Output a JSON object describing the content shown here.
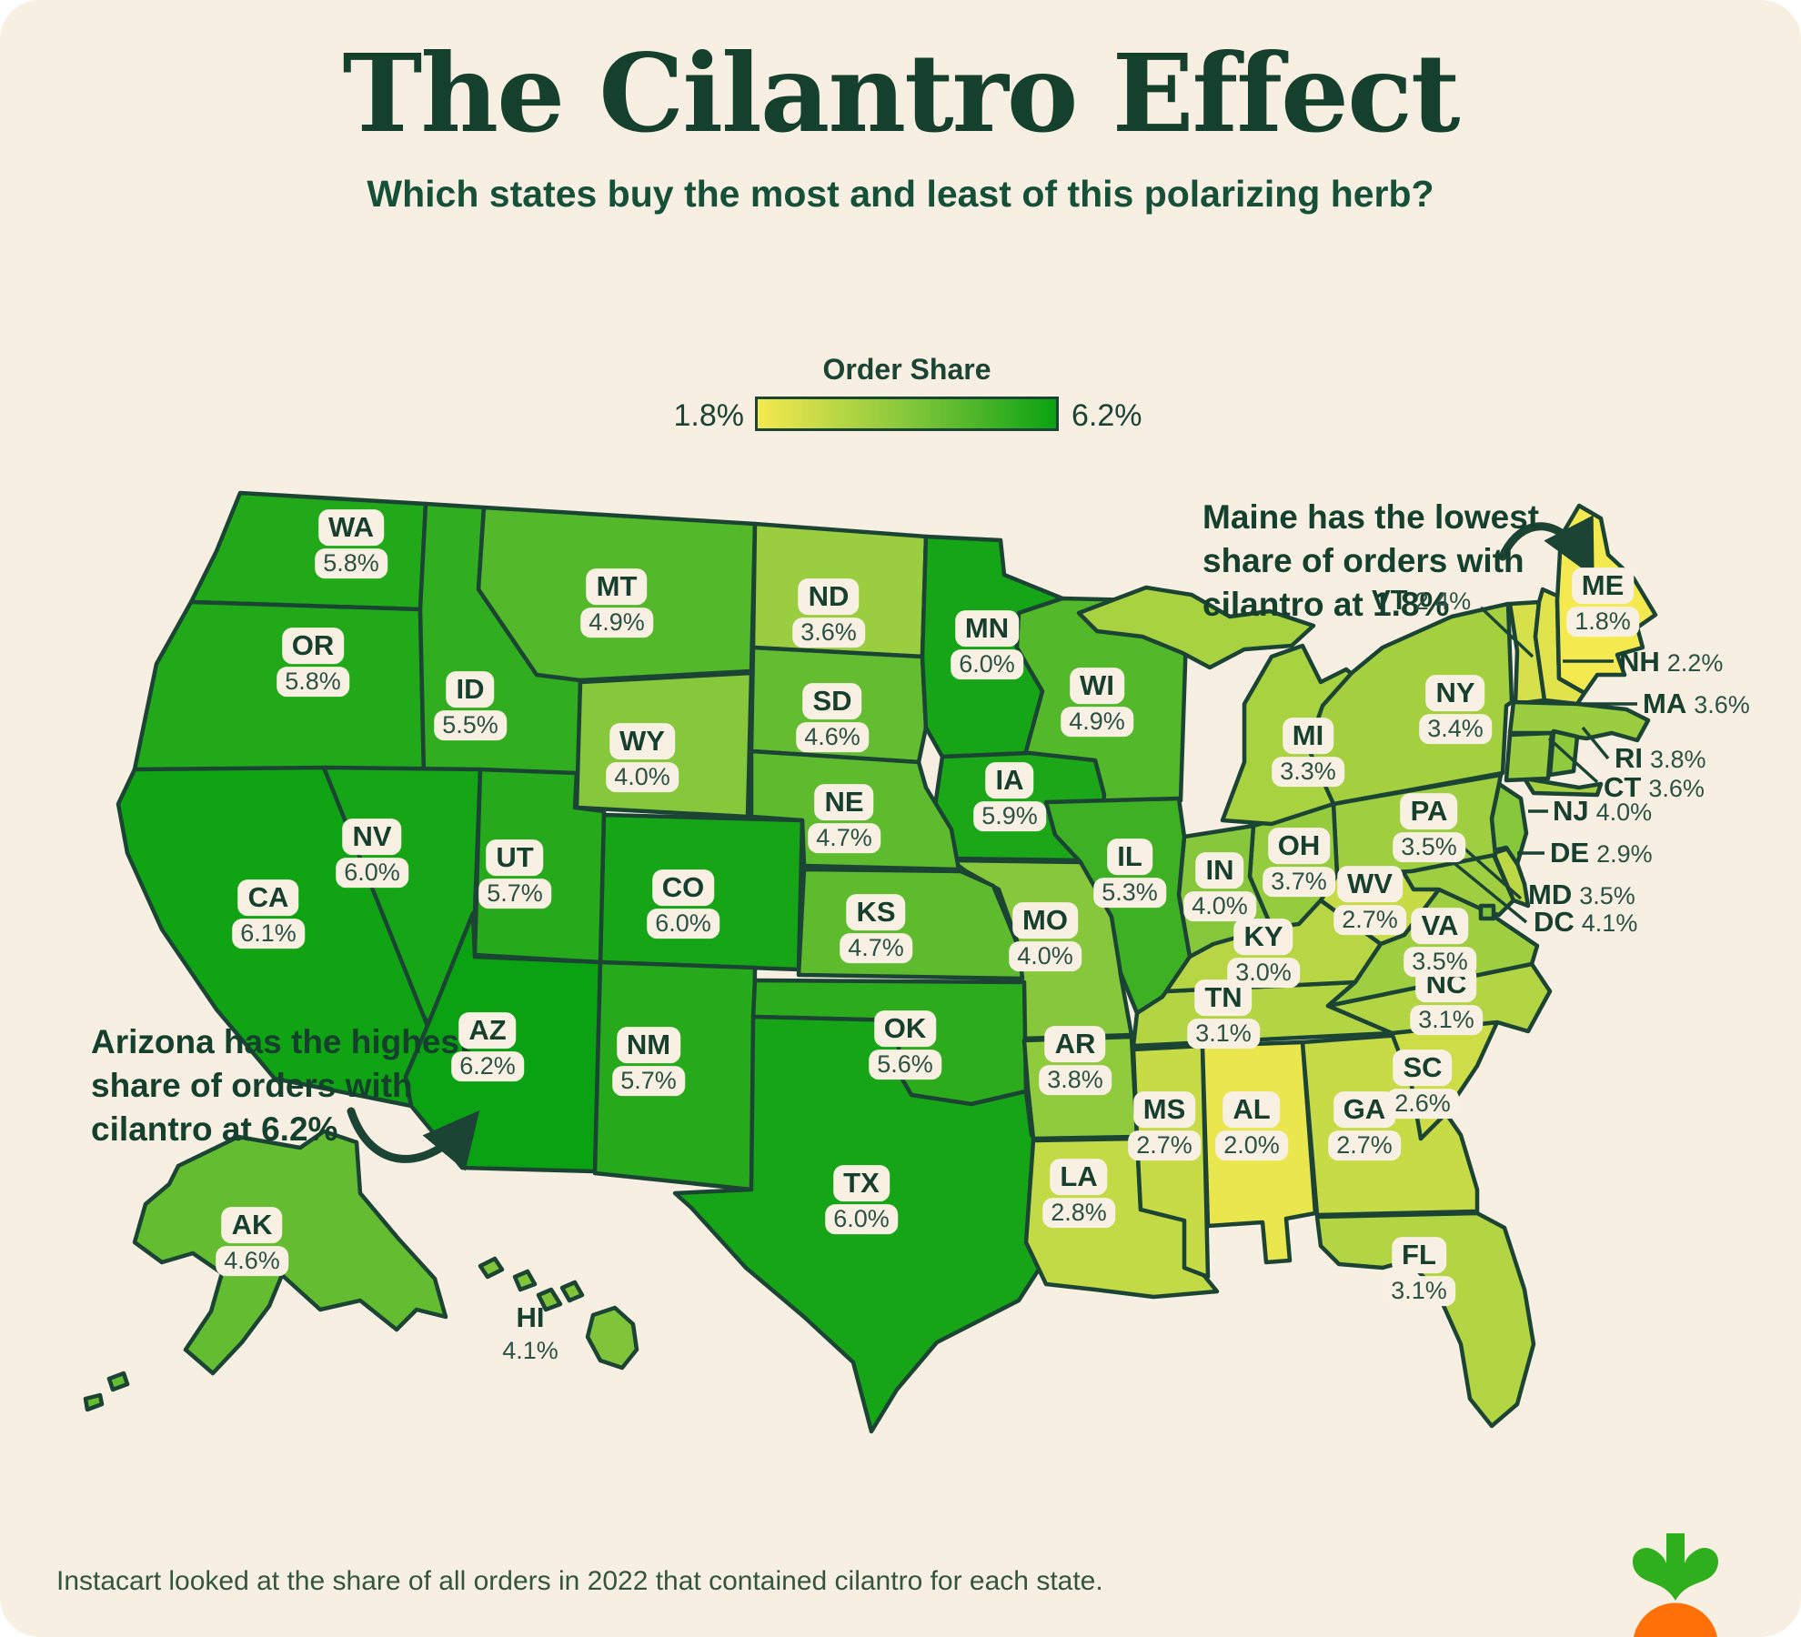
{
  "header": {
    "title": "The Cilantro Effect",
    "subtitle": "Which states buy the most and least of this polarizing herb?"
  },
  "legend": {
    "title": "Order Share",
    "min_label": "1.8%",
    "max_label": "6.2%",
    "min_value": 1.8,
    "max_value": 6.2,
    "min_color": "#f4e94f",
    "mid_color": "#86c73b",
    "max_color": "#0aa212"
  },
  "annotations": {
    "arizona": {
      "text": "Arizona has the highest share of orders with cilantro at 6.2%"
    },
    "maine": {
      "text": "Maine has the lowest share of orders with cilantro at 1.8%"
    }
  },
  "footer": {
    "text": "Instacart looked at the share of all orders in 2022 that contained cilantro for each state."
  },
  "logo": {
    "name": "instacart-carrot",
    "leaf_color": "#2fae1e",
    "carrot_color": "#ff7009"
  },
  "map_style": {
    "stroke_color": "#1c4435",
    "background": "#f7efe1"
  },
  "chart_data": {
    "type": "choropleth-map",
    "region": "united-states",
    "metric": "Order Share",
    "unit": "%",
    "range": [
      1.8,
      6.2
    ],
    "states": [
      {
        "abbr": "WA",
        "value": 5.8
      },
      {
        "abbr": "OR",
        "value": 5.8
      },
      {
        "abbr": "CA",
        "value": 6.1
      },
      {
        "abbr": "NV",
        "value": 6.0
      },
      {
        "abbr": "ID",
        "value": 5.5
      },
      {
        "abbr": "MT",
        "value": 4.9
      },
      {
        "abbr": "WY",
        "value": 4.0
      },
      {
        "abbr": "UT",
        "value": 5.7
      },
      {
        "abbr": "CO",
        "value": 6.0
      },
      {
        "abbr": "AZ",
        "value": 6.2
      },
      {
        "abbr": "NM",
        "value": 5.7
      },
      {
        "abbr": "ND",
        "value": 3.6
      },
      {
        "abbr": "SD",
        "value": 4.6
      },
      {
        "abbr": "NE",
        "value": 4.7
      },
      {
        "abbr": "KS",
        "value": 4.7
      },
      {
        "abbr": "OK",
        "value": 5.6
      },
      {
        "abbr": "TX",
        "value": 6.0
      },
      {
        "abbr": "MN",
        "value": 6.0
      },
      {
        "abbr": "IA",
        "value": 5.9
      },
      {
        "abbr": "MO",
        "value": 4.0
      },
      {
        "abbr": "AR",
        "value": 3.8
      },
      {
        "abbr": "LA",
        "value": 2.8
      },
      {
        "abbr": "WI",
        "value": 4.9
      },
      {
        "abbr": "IL",
        "value": 5.3
      },
      {
        "abbr": "MI",
        "value": 3.3
      },
      {
        "abbr": "IN",
        "value": 4.0
      },
      {
        "abbr": "OH",
        "value": 3.7
      },
      {
        "abbr": "KY",
        "value": 3.0
      },
      {
        "abbr": "TN",
        "value": 3.1
      },
      {
        "abbr": "MS",
        "value": 2.7
      },
      {
        "abbr": "AL",
        "value": 2.0
      },
      {
        "abbr": "GA",
        "value": 2.7
      },
      {
        "abbr": "SC",
        "value": 2.6
      },
      {
        "abbr": "NC",
        "value": 3.1
      },
      {
        "abbr": "VA",
        "value": 3.5
      },
      {
        "abbr": "WV",
        "value": 2.7
      },
      {
        "abbr": "FL",
        "value": 3.1
      },
      {
        "abbr": "PA",
        "value": 3.5
      },
      {
        "abbr": "NY",
        "value": 3.4
      },
      {
        "abbr": "NJ",
        "value": 4.0
      },
      {
        "abbr": "DE",
        "value": 2.9
      },
      {
        "abbr": "MD",
        "value": 3.5
      },
      {
        "abbr": "DC",
        "value": 4.1
      },
      {
        "abbr": "CT",
        "value": 3.6
      },
      {
        "abbr": "RI",
        "value": 3.8
      },
      {
        "abbr": "MA",
        "value": 3.6
      },
      {
        "abbr": "VT",
        "value": 2.4
      },
      {
        "abbr": "NH",
        "value": 2.2
      },
      {
        "abbr": "ME",
        "value": 1.8
      },
      {
        "abbr": "AK",
        "value": 4.6
      },
      {
        "abbr": "HI",
        "value": 4.1
      }
    ]
  }
}
